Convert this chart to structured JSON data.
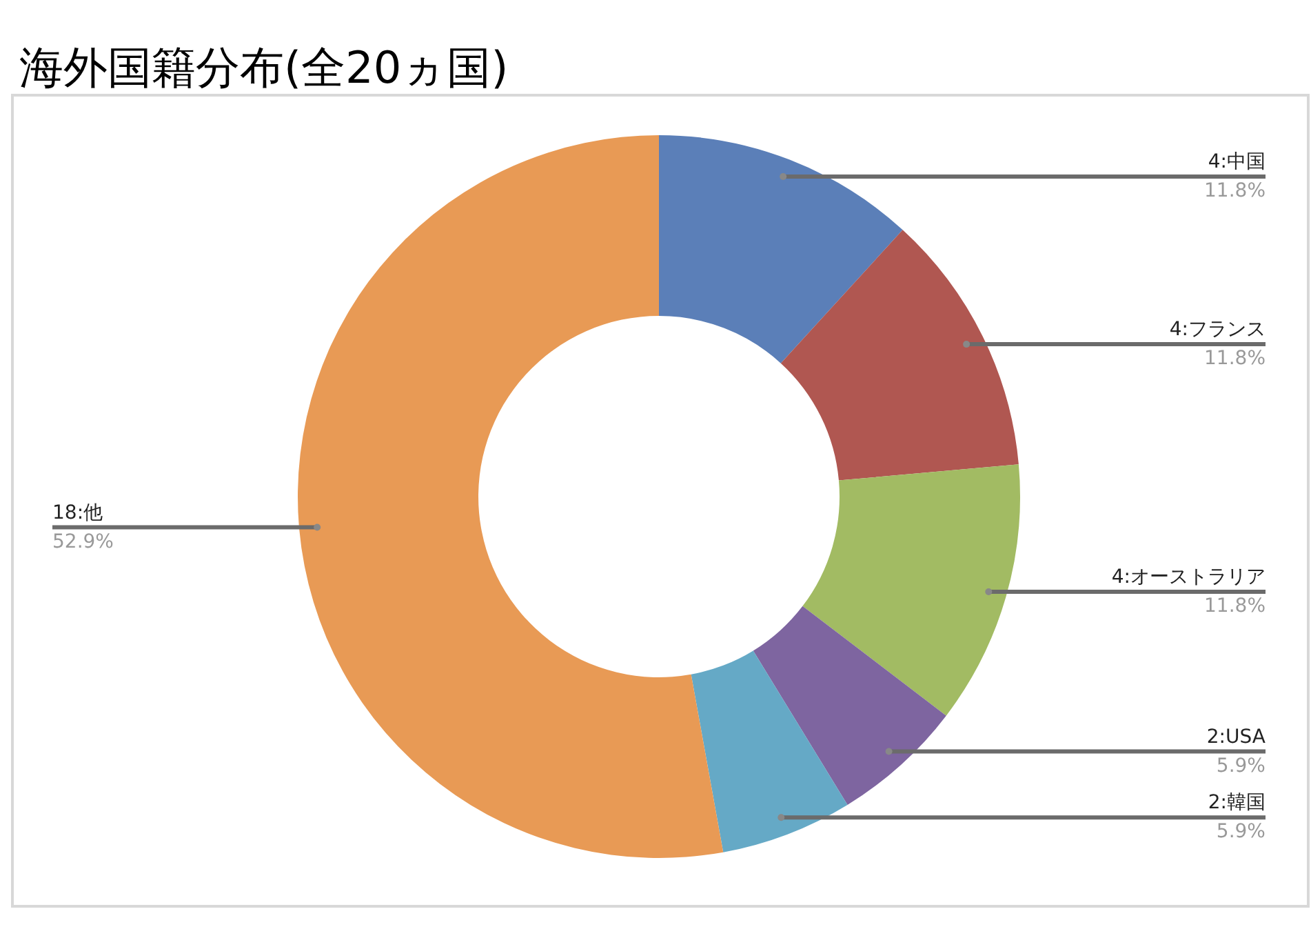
{
  "chart_data": {
    "type": "donut",
    "title": "海外国籍分布(全20ヵ国)",
    "categories": [
      "4:中国",
      "4:フランス",
      "4:オーストラリア",
      "2:USA",
      "2:韓国",
      "18:他"
    ],
    "values": [
      11.8,
      11.8,
      11.8,
      5.9,
      5.9,
      52.9
    ],
    "value_labels": [
      "11.8%",
      "11.8%",
      "11.8%",
      "5.9%",
      "5.9%",
      "52.9%"
    ],
    "colors": [
      "#5b7fb8",
      "#b05751",
      "#a2bb63",
      "#7e65a0",
      "#65a9c6",
      "#e89a55"
    ],
    "legend": false
  }
}
